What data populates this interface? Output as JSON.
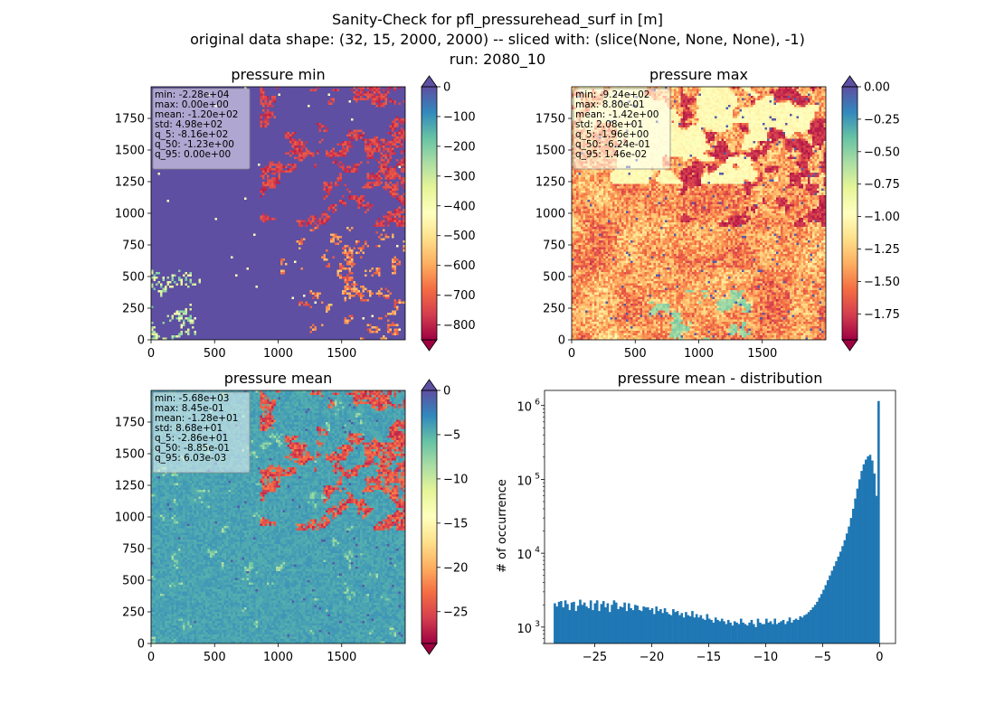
{
  "figure": {
    "title_line1": "Sanity-Check for pfl_pressurehead_surf in [m]",
    "title_line2": "original data shape: (32, 15, 2000, 2000) -- sliced with: (slice(None, None, None), -1)",
    "title_line3": "run: 2080_10"
  },
  "chart_data": [
    {
      "type": "heatmap",
      "title": "pressure min",
      "x_ticks": [
        "0",
        "500",
        "1000",
        "1500"
      ],
      "y_ticks": [
        "0",
        "250",
        "500",
        "750",
        "1000",
        "1250",
        "1500",
        "1750"
      ],
      "xlim": [
        0,
        2000
      ],
      "ylim": [
        0,
        2000
      ],
      "colormap": "Spectral",
      "colorbar": {
        "range": [
          -850,
          0
        ],
        "ticks": [
          "0",
          "−100",
          "−200",
          "−300",
          "−400",
          "−500",
          "−600",
          "−700",
          "−800"
        ],
        "tick_values": [
          0,
          -100,
          -200,
          -300,
          -400,
          -500,
          -600,
          -700,
          -800
        ],
        "extend": "both"
      },
      "dominant_color": "#5e4fa2",
      "stats": [
        "min: -2.28e+04",
        "max: 0.00e+00",
        "mean: -1.20e+02",
        "std: 4.98e+02",
        "q_5: -8.16e+02",
        "q_50: -1.23e+00",
        "q_95: 0.00e+00"
      ]
    },
    {
      "type": "heatmap",
      "title": "pressure max",
      "x_ticks": [
        "0",
        "500",
        "1000",
        "1500"
      ],
      "y_ticks": [
        "0",
        "250",
        "500",
        "750",
        "1000",
        "1250",
        "1500",
        "1750"
      ],
      "xlim": [
        0,
        2000
      ],
      "ylim": [
        0,
        2000
      ],
      "colormap": "Spectral",
      "colorbar": {
        "range": [
          -1.95,
          0
        ],
        "ticks": [
          "0.00",
          "−0.25",
          "−0.50",
          "−0.75",
          "−1.00",
          "−1.25",
          "−1.50",
          "−1.75"
        ],
        "tick_values": [
          0,
          -0.25,
          -0.5,
          -0.75,
          -1.0,
          -1.25,
          -1.5,
          -1.75
        ],
        "extend": "both"
      },
      "dominant_color": "#f46d43",
      "stats": [
        "min: -9.24e+02",
        "max: 8.80e-01",
        "mean: -1.42e+00",
        "std: 2.08e+01",
        "q_5: -1.96e+00",
        "q_50: -6.24e-01",
        "q_95: 1.46e-02"
      ]
    },
    {
      "type": "heatmap",
      "title": "pressure mean",
      "x_ticks": [
        "0",
        "500",
        "1000",
        "1500"
      ],
      "y_ticks": [
        "0",
        "250",
        "500",
        "750",
        "1000",
        "1250",
        "1500",
        "1750"
      ],
      "xlim": [
        0,
        2000
      ],
      "ylim": [
        0,
        2000
      ],
      "colormap": "Spectral",
      "colorbar": {
        "range": [
          -28.6,
          0
        ],
        "ticks": [
          "0",
          "−5",
          "−10",
          "−15",
          "−20",
          "−25"
        ],
        "tick_values": [
          0,
          -5,
          -10,
          -15,
          -20,
          -25
        ],
        "extend": "both"
      },
      "dominant_color": "#fee08b",
      "stats": [
        "min: -5.68e+03",
        "max: 8.45e-01",
        "mean: -1.28e+01",
        "std: 8.68e+01",
        "q_5: -2.86e+01",
        "q_50: -8.85e-01",
        "q_95: 6.03e-03"
      ]
    },
    {
      "type": "bar",
      "title": "pressure mean - distribution",
      "ylabel": "# of occurrence",
      "xlim": [
        -29.4,
        1.4
      ],
      "ylim": [
        600,
        1600000
      ],
      "yscale": "log",
      "x_ticks": [
        "−25",
        "−20",
        "−15",
        "−10",
        "−5",
        "0"
      ],
      "x_tick_values": [
        -25,
        -20,
        -15,
        -10,
        -5,
        0
      ],
      "y_ticks": [
        "10",
        "10",
        "10",
        "10"
      ],
      "y_tick_exponents": [
        "3",
        "4",
        "5",
        "6"
      ],
      "y_tick_values": [
        1000,
        10000,
        100000,
        1000000
      ],
      "bar_color": "#1f77b4",
      "bin_range": [
        -28.6,
        0.0
      ],
      "counts": [
        2100,
        1900,
        2200,
        2250,
        1850,
        2300,
        2050,
        1700,
        2150,
        2200,
        1650,
        1950,
        2350,
        2000,
        2150,
        1900,
        1800,
        2300,
        1700,
        2100,
        2300,
        1650,
        2050,
        2250,
        1850,
        2100,
        1600,
        2000,
        2300,
        2150,
        1750,
        1900,
        1850,
        2150,
        1650,
        2100,
        1800,
        1700,
        2000,
        1950,
        1700,
        1650,
        1900,
        1850,
        1850,
        1700,
        1800,
        1500,
        1900,
        1650,
        1750,
        1550,
        1800,
        1600,
        1500,
        1450,
        1750,
        1600,
        1650,
        1450,
        1550,
        1350,
        1600,
        1450,
        1400,
        1650,
        1350,
        1500,
        1350,
        1450,
        1300,
        1250,
        1500,
        1300,
        1250,
        1150,
        1350,
        1250,
        1200,
        1300,
        1200,
        1100,
        1250,
        1150,
        1050,
        1200,
        1150,
        1100,
        1300,
        1150,
        1100,
        1050,
        1150,
        1250,
        1100,
        1000,
        1300,
        1150,
        1100,
        1100,
        1300,
        1150,
        1200,
        1100,
        1300,
        1100,
        1150,
        1200,
        1250,
        1100,
        1200,
        1350,
        1150,
        1250,
        1300,
        1250,
        1400,
        1350,
        1450,
        1500,
        1600,
        1700,
        1850,
        2000,
        2200,
        2500,
        2800,
        3200,
        3700,
        4300,
        5000,
        5800,
        6700,
        7800,
        9000,
        10500,
        12500,
        15000,
        18500,
        23000,
        30000,
        40000,
        55000,
        75000,
        100000,
        130000,
        160000,
        185000,
        205000,
        215000,
        180000,
        120000,
        60000,
        1150000
      ]
    }
  ]
}
